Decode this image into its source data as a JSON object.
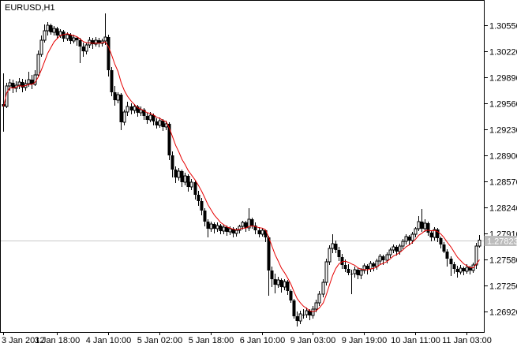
{
  "window": {
    "title": "EURUSD,H1"
  },
  "colors": {
    "background": "#ffffff",
    "border": "#000000",
    "text": "#000000",
    "bull_body": "#ffffff",
    "bear_body": "#000000",
    "wick": "#000000",
    "ma_line": "#e60000",
    "price_line": "#c8c8c8",
    "badge_bg": "#bdbdbd",
    "badge_text": "#ffffff"
  },
  "chart_data": {
    "type": "candlestick",
    "symbol": "EURUSD",
    "timeframe": "H1",
    "title": "EURUSD,H1",
    "legend_position": "top-left",
    "grid": false,
    "ylim": [
      1.2666,
      1.3086
    ],
    "y_ticks": [
      "1.30550",
      "1.30220",
      "1.29890",
      "1.29560",
      "1.29230",
      "1.28900",
      "1.28570",
      "1.28240",
      "1.27910",
      "1.27580",
      "1.27250",
      "1.26920"
    ],
    "x_ticks": [
      {
        "label": "3 Jan 2012",
        "index": 0
      },
      {
        "label": "3 Jan 18:00",
        "index": 17
      },
      {
        "label": "4 Jan 10:00",
        "index": 33
      },
      {
        "label": "5 Jan 02:00",
        "index": 49
      },
      {
        "label": "5 Jan 18:00",
        "index": 65
      },
      {
        "label": "6 Jan 10:00",
        "index": 81
      },
      {
        "label": "9 Jan 03:00",
        "index": 97
      },
      {
        "label": "9 Jan 19:00",
        "index": 113
      },
      {
        "label": "10 Jan 11:00",
        "index": 129
      },
      {
        "label": "11 Jan 03:00",
        "index": 145
      }
    ],
    "current_price": {
      "value": 1.27823,
      "label": "1.27823"
    },
    "ma": {
      "type": "lwma",
      "period": 10,
      "applied_to": "close"
    },
    "candles": [
      [
        1.2955,
        1.2994,
        1.292,
        1.2952
      ],
      [
        1.2952,
        1.2982,
        1.295,
        1.2978
      ],
      [
        1.2978,
        1.2987,
        1.2972,
        1.2982
      ],
      [
        1.2982,
        1.2986,
        1.2969,
        1.2975
      ],
      [
        1.2975,
        1.2984,
        1.297,
        1.2979
      ],
      [
        1.2979,
        1.2988,
        1.2974,
        1.2983
      ],
      [
        1.2983,
        1.2987,
        1.297,
        1.2976
      ],
      [
        1.2976,
        1.2986,
        1.2972,
        1.2981
      ],
      [
        1.2981,
        1.2996,
        1.2977,
        1.2986
      ],
      [
        1.2986,
        1.2992,
        1.2974,
        1.298
      ],
      [
        1.298,
        1.2998,
        1.2978,
        1.2992
      ],
      [
        1.2992,
        1.3023,
        1.299,
        1.3018
      ],
      [
        1.3018,
        1.3042,
        1.3015,
        1.3036
      ],
      [
        1.3036,
        1.3056,
        1.3033,
        1.3048
      ],
      [
        1.3048,
        1.3059,
        1.3042,
        1.3055
      ],
      [
        1.3055,
        1.3057,
        1.3043,
        1.3046
      ],
      [
        1.3046,
        1.3054,
        1.3042,
        1.3051
      ],
      [
        1.3051,
        1.3053,
        1.3038,
        1.3042
      ],
      [
        1.3042,
        1.305,
        1.3039,
        1.3047
      ],
      [
        1.3047,
        1.3049,
        1.3034,
        1.3038
      ],
      [
        1.3038,
        1.3046,
        1.3035,
        1.3043
      ],
      [
        1.3043,
        1.3045,
        1.3031,
        1.3035
      ],
      [
        1.3035,
        1.3043,
        1.3032,
        1.3039
      ],
      [
        1.3039,
        1.3041,
        1.3029,
        1.3036
      ],
      [
        1.3036,
        1.3039,
        1.3007,
        1.3028
      ],
      [
        1.3028,
        1.3033,
        1.3015,
        1.3022
      ],
      [
        1.3022,
        1.3033,
        1.3018,
        1.303
      ],
      [
        1.303,
        1.304,
        1.3026,
        1.3036
      ],
      [
        1.3036,
        1.3039,
        1.3025,
        1.3031
      ],
      [
        1.3031,
        1.304,
        1.3028,
        1.3036
      ],
      [
        1.3036,
        1.3039,
        1.3027,
        1.3032
      ],
      [
        1.3032,
        1.3038,
        1.3028,
        1.3035
      ],
      [
        1.3035,
        1.307,
        1.303,
        1.304
      ],
      [
        1.304,
        1.3043,
        1.299,
        1.2998
      ],
      [
        1.2998,
        1.3002,
        1.2965,
        1.297
      ],
      [
        1.297,
        1.2978,
        1.2953,
        1.296
      ],
      [
        1.296,
        1.297,
        1.2956,
        1.2967
      ],
      [
        1.2967,
        1.2969,
        1.2922,
        1.2932
      ],
      [
        1.2932,
        1.2948,
        1.2928,
        1.2945
      ],
      [
        1.2945,
        1.2958,
        1.294,
        1.2952
      ],
      [
        1.2952,
        1.2956,
        1.2942,
        1.2947
      ],
      [
        1.2947,
        1.2955,
        1.2943,
        1.2952
      ],
      [
        1.2952,
        1.2954,
        1.2939,
        1.2944
      ],
      [
        1.2944,
        1.2952,
        1.294,
        1.2948
      ],
      [
        1.2948,
        1.295,
        1.2935,
        1.294
      ],
      [
        1.294,
        1.2944,
        1.293,
        1.2935
      ],
      [
        1.2935,
        1.2945,
        1.2932,
        1.2941
      ],
      [
        1.2941,
        1.2943,
        1.2928,
        1.2933
      ],
      [
        1.2933,
        1.2937,
        1.2924,
        1.2928
      ],
      [
        1.2928,
        1.2938,
        1.2925,
        1.2934
      ],
      [
        1.2934,
        1.2936,
        1.2921,
        1.2926
      ],
      [
        1.2926,
        1.2934,
        1.2922,
        1.293
      ],
      [
        1.293,
        1.2932,
        1.2884,
        1.289
      ],
      [
        1.289,
        1.2895,
        1.2862,
        1.2872
      ],
      [
        1.2872,
        1.2876,
        1.2855,
        1.2862
      ],
      [
        1.2862,
        1.2874,
        1.2858,
        1.287
      ],
      [
        1.287,
        1.2872,
        1.285,
        1.2856
      ],
      [
        1.2856,
        1.2868,
        1.2852,
        1.2864
      ],
      [
        1.2864,
        1.2866,
        1.2844,
        1.285
      ],
      [
        1.285,
        1.286,
        1.2846,
        1.2856
      ],
      [
        1.2856,
        1.2858,
        1.2834,
        1.284
      ],
      [
        1.284,
        1.2845,
        1.2826,
        1.2832
      ],
      [
        1.2832,
        1.2836,
        1.2814,
        1.282
      ],
      [
        1.282,
        1.2823,
        1.28,
        1.2806
      ],
      [
        1.2806,
        1.2809,
        1.2786,
        1.2797
      ],
      [
        1.2797,
        1.2806,
        1.2793,
        1.2803
      ],
      [
        1.2803,
        1.2805,
        1.2791,
        1.2797
      ],
      [
        1.2797,
        1.2805,
        1.2793,
        1.2801
      ],
      [
        1.2801,
        1.2803,
        1.279,
        1.2794
      ],
      [
        1.2794,
        1.2802,
        1.279,
        1.2799
      ],
      [
        1.2799,
        1.2801,
        1.2788,
        1.2793
      ],
      [
        1.2793,
        1.28,
        1.2789,
        1.2797
      ],
      [
        1.2797,
        1.2799,
        1.2786,
        1.2791
      ],
      [
        1.2791,
        1.2798,
        1.2787,
        1.2795
      ],
      [
        1.2795,
        1.2802,
        1.2791,
        1.28
      ],
      [
        1.28,
        1.2807,
        1.2796,
        1.2805
      ],
      [
        1.2805,
        1.2807,
        1.2793,
        1.2798
      ],
      [
        1.2798,
        1.2823,
        1.2794,
        1.2809
      ],
      [
        1.2809,
        1.2811,
        1.2797,
        1.2801
      ],
      [
        1.2801,
        1.2805,
        1.279,
        1.2795
      ],
      [
        1.2795,
        1.2799,
        1.2786,
        1.279
      ],
      [
        1.279,
        1.2798,
        1.2787,
        1.2795
      ],
      [
        1.2795,
        1.2796,
        1.278,
        1.2786
      ],
      [
        1.2786,
        1.2788,
        1.2712,
        1.2744
      ],
      [
        1.2744,
        1.2749,
        1.2723,
        1.2733
      ],
      [
        1.2733,
        1.274,
        1.2715,
        1.2726
      ],
      [
        1.2726,
        1.2736,
        1.2722,
        1.2732
      ],
      [
        1.2732,
        1.2734,
        1.2716,
        1.2723
      ],
      [
        1.2723,
        1.2733,
        1.2719,
        1.273
      ],
      [
        1.273,
        1.2732,
        1.2713,
        1.2718
      ],
      [
        1.2718,
        1.272,
        1.2703,
        1.2706
      ],
      [
        1.2706,
        1.2708,
        1.2683,
        1.2686
      ],
      [
        1.2686,
        1.2692,
        1.2673,
        1.268
      ],
      [
        1.268,
        1.2693,
        1.2676,
        1.2689
      ],
      [
        1.2689,
        1.2695,
        1.2683,
        1.2688
      ],
      [
        1.2688,
        1.2697,
        1.2684,
        1.2693
      ],
      [
        1.2693,
        1.2695,
        1.2681,
        1.2687
      ],
      [
        1.2687,
        1.2699,
        1.2683,
        1.2695
      ],
      [
        1.2695,
        1.2707,
        1.2691,
        1.2703
      ],
      [
        1.2703,
        1.2718,
        1.2699,
        1.2714
      ],
      [
        1.2714,
        1.2733,
        1.271,
        1.2729
      ],
      [
        1.2729,
        1.2759,
        1.2725,
        1.2755
      ],
      [
        1.2755,
        1.2776,
        1.2751,
        1.2772
      ],
      [
        1.2772,
        1.279,
        1.2766,
        1.2778
      ],
      [
        1.2778,
        1.2782,
        1.2766,
        1.277
      ],
      [
        1.277,
        1.2774,
        1.2756,
        1.2761
      ],
      [
        1.2761,
        1.2765,
        1.2746,
        1.2751
      ],
      [
        1.2751,
        1.2758,
        1.2742,
        1.2746
      ],
      [
        1.2746,
        1.2752,
        1.2738,
        1.2741
      ],
      [
        1.2741,
        1.2745,
        1.2714,
        1.274
      ],
      [
        1.274,
        1.2749,
        1.2735,
        1.2745
      ],
      [
        1.2745,
        1.2747,
        1.2733,
        1.2738
      ],
      [
        1.2738,
        1.2747,
        1.2733,
        1.2744
      ],
      [
        1.2744,
        1.2753,
        1.274,
        1.275
      ],
      [
        1.275,
        1.2752,
        1.2739,
        1.2746
      ],
      [
        1.2746,
        1.2756,
        1.2742,
        1.2753
      ],
      [
        1.2753,
        1.2755,
        1.2743,
        1.2749
      ],
      [
        1.2749,
        1.2759,
        1.2745,
        1.2756
      ],
      [
        1.2756,
        1.2765,
        1.2752,
        1.2762
      ],
      [
        1.2762,
        1.2764,
        1.2751,
        1.2757
      ],
      [
        1.2757,
        1.2767,
        1.2753,
        1.2764
      ],
      [
        1.2764,
        1.2773,
        1.276,
        1.277
      ],
      [
        1.277,
        1.2777,
        1.2766,
        1.2774
      ],
      [
        1.2774,
        1.2776,
        1.2763,
        1.2768
      ],
      [
        1.2768,
        1.2778,
        1.2764,
        1.2775
      ],
      [
        1.2775,
        1.2784,
        1.2771,
        1.2781
      ],
      [
        1.2781,
        1.279,
        1.2777,
        1.2787
      ],
      [
        1.2787,
        1.2789,
        1.2776,
        1.2782
      ],
      [
        1.2782,
        1.2793,
        1.2778,
        1.279
      ],
      [
        1.279,
        1.2799,
        1.2786,
        1.2797
      ],
      [
        1.2797,
        1.2813,
        1.2794,
        1.2806
      ],
      [
        1.2806,
        1.2822,
        1.2793,
        1.2797
      ],
      [
        1.2797,
        1.2809,
        1.2793,
        1.2804
      ],
      [
        1.2804,
        1.2806,
        1.2788,
        1.2792
      ],
      [
        1.2792,
        1.2795,
        1.2781,
        1.2786
      ],
      [
        1.2786,
        1.2799,
        1.2782,
        1.2796
      ],
      [
        1.2796,
        1.2798,
        1.278,
        1.2785
      ],
      [
        1.2785,
        1.2787,
        1.2772,
        1.2777
      ],
      [
        1.2777,
        1.278,
        1.2766,
        1.2768
      ],
      [
        1.2768,
        1.2771,
        1.2749,
        1.2759
      ],
      [
        1.2759,
        1.2762,
        1.2737,
        1.2752
      ],
      [
        1.2752,
        1.2755,
        1.274,
        1.2746
      ],
      [
        1.2746,
        1.275,
        1.2735,
        1.2742
      ],
      [
        1.2742,
        1.2751,
        1.2739,
        1.2747
      ],
      [
        1.2747,
        1.2749,
        1.2738,
        1.2743
      ],
      [
        1.2743,
        1.2752,
        1.274,
        1.2748
      ],
      [
        1.2748,
        1.275,
        1.2739,
        1.2744
      ],
      [
        1.2744,
        1.2754,
        1.2741,
        1.2751
      ],
      [
        1.2751,
        1.2779,
        1.2746,
        1.2775
      ],
      [
        1.2775,
        1.2789,
        1.2773,
        1.27823
      ]
    ]
  }
}
